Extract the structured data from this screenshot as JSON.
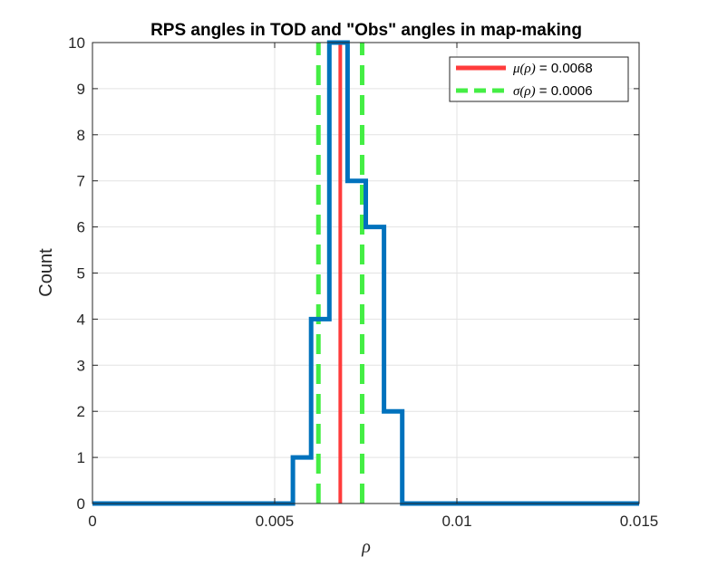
{
  "chart_data": {
    "type": "line",
    "title": "RPS angles in TOD and \"Obs\" angles in map-making",
    "xlabel": "ρ",
    "ylabel": "Count",
    "xlim": [
      0,
      0.015
    ],
    "ylim": [
      0,
      10
    ],
    "x_ticks": [
      0,
      0.005,
      0.01,
      0.015
    ],
    "x_tick_labels": [
      "0",
      "0.005",
      "0.01",
      "0.015"
    ],
    "y_ticks": [
      0,
      1,
      2,
      3,
      4,
      5,
      6,
      7,
      8,
      9,
      10
    ],
    "y_tick_labels": [
      "0",
      "1",
      "2",
      "3",
      "4",
      "5",
      "6",
      "7",
      "8",
      "9",
      "10"
    ],
    "grid": true,
    "legend_position": "top-right",
    "histogram": {
      "color": "#0072BD",
      "bin_edges": [
        0.0055,
        0.006,
        0.0065,
        0.007,
        0.0075,
        0.008,
        0.0085
      ],
      "counts": [
        1,
        4,
        10,
        7,
        6,
        2
      ]
    },
    "mean": {
      "value": 0.0068,
      "color": "#ff3b3b",
      "legend_symbol": "μ(ρ)",
      "legend_value": " = 0.0068"
    },
    "sigma": {
      "value": 0.0006,
      "lines": [
        0.0062,
        0.0074
      ],
      "color": "#44ee44",
      "legend_symbol": "σ(ρ)",
      "legend_value": " = 0.0006"
    }
  }
}
